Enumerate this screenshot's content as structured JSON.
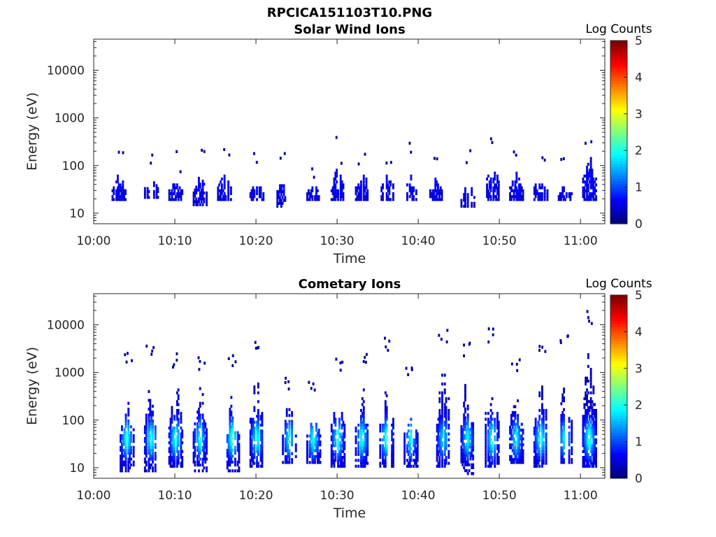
{
  "figure_title": "RPCICA151103T10.PNG",
  "colorbar": {
    "label": "Log Counts",
    "ticks": [
      "0",
      "1",
      "2",
      "3",
      "4",
      "5"
    ],
    "range": [
      0,
      5
    ]
  },
  "chart_data": [
    {
      "type": "heatmap",
      "title": "Solar Wind Ions",
      "xlabel": "Time",
      "ylabel": "Energy (eV)",
      "xticks": [
        "10:00",
        "10:10",
        "10:20",
        "10:30",
        "10:40",
        "10:50",
        "11:00"
      ],
      "yticks": [
        "10",
        "100",
        "1000",
        "10000"
      ],
      "xlim": [
        "10:00",
        "11:03"
      ],
      "ylim": [
        6,
        45000
      ],
      "yscale": "log",
      "grid": false,
      "colormap": "jet",
      "bursts": [
        {
          "t": "10:03",
          "emin": 18,
          "emax": 70,
          "peak": 0.4
        },
        {
          "t": "10:07",
          "emin": 20,
          "emax": 65,
          "peak": 0.4
        },
        {
          "t": "10:10",
          "emin": 18,
          "emax": 60,
          "peak": 0.4
        },
        {
          "t": "10:13",
          "emin": 14,
          "emax": 70,
          "peak": 0.4
        },
        {
          "t": "10:16",
          "emin": 18,
          "emax": 80,
          "peak": 0.5
        },
        {
          "t": "10:20",
          "emin": 18,
          "emax": 45,
          "peak": 0.4
        },
        {
          "t": "10:23",
          "emin": 13,
          "emax": 60,
          "peak": 0.4
        },
        {
          "t": "10:27",
          "emin": 18,
          "emax": 45,
          "peak": 0.4
        },
        {
          "t": "10:30",
          "emin": 18,
          "emax": 100,
          "peak": 0.5
        },
        {
          "t": "10:33",
          "emin": 18,
          "emax": 90,
          "peak": 0.4
        },
        {
          "t": "10:36",
          "emin": 18,
          "emax": 100,
          "peak": 0.4
        },
        {
          "t": "10:39",
          "emin": 18,
          "emax": 70,
          "peak": 0.4
        },
        {
          "t": "10:42",
          "emin": 18,
          "emax": 60,
          "peak": 0.4
        },
        {
          "t": "10:46",
          "emin": 13,
          "emax": 60,
          "peak": 0.4
        },
        {
          "t": "10:49",
          "emin": 18,
          "emax": 200,
          "peak": 0.4
        },
        {
          "t": "10:52",
          "emin": 18,
          "emax": 80,
          "peak": 0.4
        },
        {
          "t": "10:55",
          "emin": 18,
          "emax": 70,
          "peak": 0.4
        },
        {
          "t": "10:58",
          "emin": 18,
          "emax": 40,
          "peak": 0.4
        },
        {
          "t": "11:01",
          "emin": 18,
          "emax": 200,
          "peak": 0.5
        }
      ]
    },
    {
      "type": "heatmap",
      "title": "Cometary Ions",
      "xlabel": "Time",
      "ylabel": "Energy (eV)",
      "xticks": [
        "10:00",
        "10:10",
        "10:20",
        "10:30",
        "10:40",
        "10:50",
        "11:00"
      ],
      "yticks": [
        "10",
        "100",
        "1000",
        "10000"
      ],
      "xlim": [
        "10:00",
        "11:03"
      ],
      "ylim": [
        6,
        45000
      ],
      "yscale": "log",
      "grid": false,
      "colormap": "jet",
      "bursts": [
        {
          "t": "10:04",
          "emin": 8,
          "emax": 1200,
          "peak": 1.9
        },
        {
          "t": "10:07",
          "emin": 8,
          "emax": 2000,
          "peak": 1.8
        },
        {
          "t": "10:10",
          "emin": 10,
          "emax": 1200,
          "peak": 1.9
        },
        {
          "t": "10:13",
          "emin": 8,
          "emax": 1000,
          "peak": 1.7
        },
        {
          "t": "10:17",
          "emin": 8,
          "emax": 1200,
          "peak": 2.0
        },
        {
          "t": "10:20",
          "emin": 10,
          "emax": 2500,
          "peak": 1.8
        },
        {
          "t": "10:24",
          "emin": 12,
          "emax": 400,
          "peak": 1.6
        },
        {
          "t": "10:27",
          "emin": 12,
          "emax": 300,
          "peak": 1.8
        },
        {
          "t": "10:30",
          "emin": 10,
          "emax": 1000,
          "peak": 1.9
        },
        {
          "t": "10:33",
          "emin": 10,
          "emax": 1200,
          "peak": 1.8
        },
        {
          "t": "10:36",
          "emin": 10,
          "emax": 2500,
          "peak": 1.9
        },
        {
          "t": "10:39",
          "emin": 10,
          "emax": 700,
          "peak": 1.7
        },
        {
          "t": "10:43",
          "emin": 10,
          "emax": 4000,
          "peak": 1.6
        },
        {
          "t": "10:46",
          "emin": 7,
          "emax": 2000,
          "peak": 1.7
        },
        {
          "t": "10:49",
          "emin": 10,
          "emax": 4000,
          "peak": 1.8
        },
        {
          "t": "10:52",
          "emin": 12,
          "emax": 1000,
          "peak": 1.7
        },
        {
          "t": "10:55",
          "emin": 10,
          "emax": 2000,
          "peak": 1.9
        },
        {
          "t": "10:58",
          "emin": 12,
          "emax": 3000,
          "peak": 1.8
        },
        {
          "t": "11:01",
          "emin": 10,
          "emax": 9000,
          "peak": 2.0
        }
      ]
    }
  ]
}
